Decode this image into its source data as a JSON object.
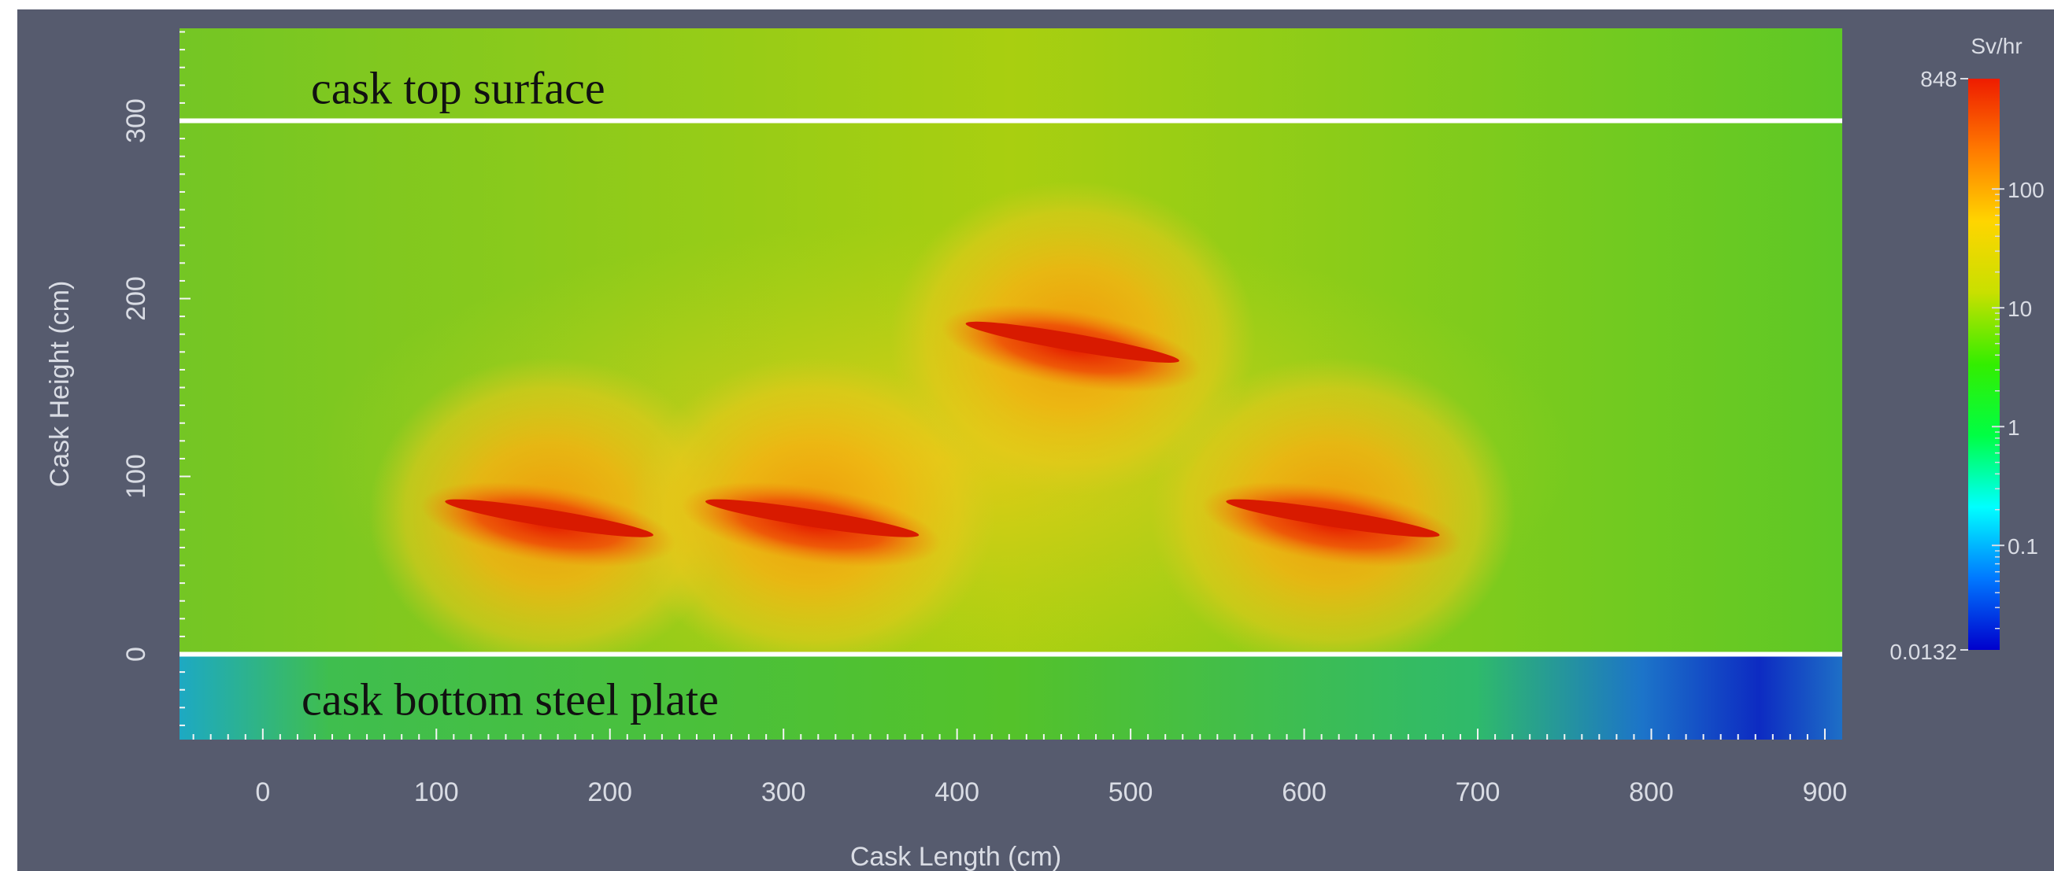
{
  "chart_data": {
    "type": "heatmap",
    "xlabel": "Cask Length (cm)",
    "ylabel": "Cask Height (cm)",
    "x_ticks": [
      0,
      100,
      200,
      300,
      400,
      500,
      600,
      700,
      800,
      900
    ],
    "y_ticks": [
      0,
      100,
      200,
      300
    ],
    "xlim": [
      -48,
      910
    ],
    "ylim": [
      -48,
      352
    ],
    "reference_lines": [
      {
        "y": 300,
        "label": "cask top surface"
      },
      {
        "y": 0,
        "label": "cask bottom steel plate"
      }
    ],
    "hotspots": [
      {
        "x_start": 105,
        "y_start": 86,
        "x_end": 225,
        "y_end": 67
      },
      {
        "x_start": 255,
        "y_start": 86,
        "x_end": 378,
        "y_end": 67
      },
      {
        "x_start": 405,
        "y_start": 186,
        "x_end": 528,
        "y_end": 165
      },
      {
        "x_start": 555,
        "y_start": 86,
        "x_end": 678,
        "y_end": 67
      }
    ],
    "colorbar": {
      "title": "Sv/hr",
      "scale": "log",
      "max_label": "848",
      "min_label": "0.0132",
      "min": 0.0132,
      "max": 848,
      "ticks": [
        {
          "value": 100,
          "label": "100"
        },
        {
          "value": 10,
          "label": "10"
        },
        {
          "value": 1,
          "label": "1"
        },
        {
          "value": 0.1,
          "label": "0.1"
        }
      ],
      "colors": [
        "#0000cc",
        "#0078ff",
        "#00ffff",
        "#00ff44",
        "#33ee00",
        "#c8e000",
        "#ffd500",
        "#ff7a00",
        "#ee1c00"
      ]
    },
    "colors": {
      "background": "#565b6e",
      "field_base": "#8cc823",
      "plate": "#40bc2c",
      "line": "#ffffff",
      "axis_text": "#d9dce4",
      "annotation_text": "#111111"
    }
  }
}
